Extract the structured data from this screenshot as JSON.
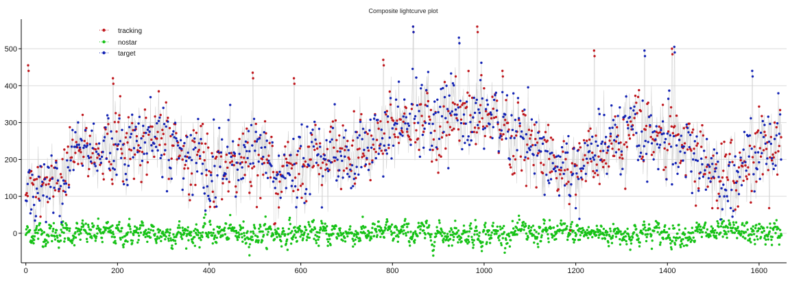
{
  "chart_data": {
    "type": "scatter",
    "title": "Composite lightcurve plot",
    "xlabel": "",
    "ylabel": "",
    "xlim": [
      -10,
      1660
    ],
    "ylim": [
      -80,
      580
    ],
    "xticks": [
      0,
      200,
      400,
      600,
      800,
      1000,
      1200,
      1400,
      1600
    ],
    "yticks": [
      0,
      100,
      200,
      300,
      400,
      500
    ],
    "grid": "horizontal",
    "legend_position": "top-left",
    "n_points": 1650,
    "colors": {
      "tracking": "#c0161c",
      "nostar": "#16c216",
      "target": "#1222b4",
      "connector": "#d3d3d3"
    },
    "series": [
      {
        "name": "tracking",
        "approx_mean_profile": {
          "x": [
            0,
            20,
            40,
            60,
            80,
            100,
            140,
            200,
            260,
            300,
            340,
            380,
            400,
            440,
            500,
            550,
            600,
            650,
            700,
            760,
            800,
            850,
            900,
            950,
            1000,
            1050,
            1100,
            1150,
            1200,
            1250,
            1300,
            1350,
            1400,
            1450,
            1500,
            1550,
            1600,
            1650
          ],
          "y": [
            170,
            110,
            130,
            120,
            180,
            210,
            220,
            240,
            260,
            250,
            230,
            210,
            160,
            200,
            230,
            150,
            190,
            220,
            200,
            240,
            280,
            300,
            290,
            310,
            300,
            280,
            220,
            200,
            190,
            210,
            250,
            260,
            230,
            220,
            150,
            160,
            240,
            220
          ]
        },
        "spread": 55,
        "spikes": [
          [
            5,
            455
          ],
          [
            190,
            420
          ],
          [
            495,
            435
          ],
          [
            585,
            420
          ],
          [
            780,
            470
          ],
          [
            845,
            560
          ],
          [
            985,
            560
          ],
          [
            1040,
            440
          ],
          [
            1240,
            495
          ],
          [
            1410,
            500
          ]
        ]
      },
      {
        "name": "nostar",
        "approx_mean_profile": {
          "x": [
            0,
            1650
          ],
          "y": [
            0,
            0
          ]
        },
        "spread": 18,
        "spikes": []
      },
      {
        "name": "target",
        "approx_mean_profile": {
          "x": [
            0,
            20,
            40,
            60,
            80,
            100,
            140,
            200,
            260,
            300,
            340,
            380,
            400,
            440,
            500,
            550,
            600,
            650,
            700,
            760,
            800,
            850,
            900,
            950,
            1000,
            1050,
            1100,
            1150,
            1200,
            1250,
            1300,
            1350,
            1400,
            1450,
            1500,
            1550,
            1600,
            1650
          ],
          "y": [
            160,
            100,
            130,
            110,
            190,
            210,
            230,
            240,
            270,
            260,
            230,
            210,
            150,
            200,
            240,
            140,
            190,
            220,
            200,
            250,
            290,
            310,
            300,
            320,
            310,
            300,
            210,
            190,
            170,
            220,
            260,
            270,
            240,
            230,
            140,
            160,
            260,
            230
          ]
        },
        "spread": 60,
        "spikes": [
          [
            845,
            560
          ],
          [
            945,
            530
          ],
          [
            1350,
            495
          ],
          [
            1415,
            505
          ],
          [
            1585,
            440
          ]
        ]
      }
    ]
  }
}
